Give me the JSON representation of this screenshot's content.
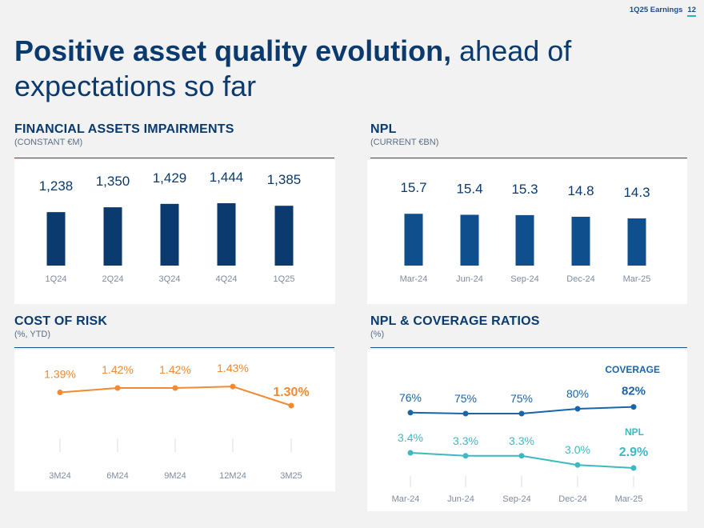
{
  "header": {
    "report_label": "1Q25 Earnings",
    "page_number": "12"
  },
  "title": {
    "bold_part": "Positive asset quality evolution,",
    "regular_part": " ahead of expectations so far"
  },
  "colors": {
    "navy": "#0a3a6e",
    "blue_bar": "#0f4f8e",
    "orange": "#f08a33",
    "teal": "#3fb8c4",
    "coverage_blue": "#1a64a8",
    "axis_label": "#7d8ba0"
  },
  "sections": {
    "impairments": {
      "title": "FINANCIAL ASSETS IMPAIRMENTS",
      "subtitle": "(CONSTANT €M)"
    },
    "npl": {
      "title": "NPL",
      "subtitle": "(CURRENT €BN)"
    },
    "cost_of_risk": {
      "title": "COST OF RISK",
      "subtitle": "(%, YTD)"
    },
    "ratios": {
      "title": "NPL & COVERAGE RATIOS",
      "subtitle": "(%)"
    }
  },
  "chart_data": [
    {
      "id": "impairments",
      "type": "bar",
      "title": "FINANCIAL ASSETS IMPAIRMENTS",
      "ylabel": "(CONSTANT €M)",
      "categories": [
        "1Q24",
        "2Q24",
        "3Q24",
        "4Q24",
        "1Q25"
      ],
      "values": [
        1238,
        1350,
        1429,
        1444,
        1385
      ],
      "labels": [
        "1,238",
        "1,350",
        "1,429",
        "1,444",
        "1,385"
      ],
      "ylim": [
        0,
        1500
      ]
    },
    {
      "id": "npl",
      "type": "bar",
      "title": "NPL",
      "ylabel": "(CURRENT €BN)",
      "categories": [
        "Mar-24",
        "Jun-24",
        "Sep-24",
        "Dec-24",
        "Mar-25"
      ],
      "values": [
        15.7,
        15.4,
        15.3,
        14.8,
        14.3
      ],
      "labels": [
        "15.7",
        "15.4",
        "15.3",
        "14.8",
        "14.3"
      ],
      "ylim": [
        0,
        16
      ]
    },
    {
      "id": "cost_of_risk",
      "type": "line",
      "title": "COST OF RISK",
      "ylabel": "(%, YTD)",
      "categories": [
        "3M24",
        "6M24",
        "9M24",
        "12M24",
        "3M25"
      ],
      "values": [
        1.39,
        1.42,
        1.42,
        1.43,
        1.3
      ],
      "labels": [
        "1.39%",
        "1.42%",
        "1.42%",
        "1.43%",
        "1.30%"
      ],
      "ylim": [
        1.0,
        1.6
      ]
    },
    {
      "id": "ratios",
      "type": "line",
      "title": "NPL & COVERAGE RATIOS",
      "ylabel": "(%)",
      "categories": [
        "Mar-24",
        "Jun-24",
        "Sep-24",
        "Dec-24",
        "Mar-25"
      ],
      "series": [
        {
          "name": "COVERAGE",
          "values": [
            76,
            75,
            75,
            80,
            82
          ],
          "labels": [
            "76%",
            "75%",
            "75%",
            "80%",
            "82%"
          ]
        },
        {
          "name": "NPL",
          "values": [
            3.4,
            3.3,
            3.3,
            3.0,
            2.9
          ],
          "labels": [
            "3.4%",
            "3.3%",
            "3.3%",
            "3.0%",
            "2.9%"
          ]
        }
      ]
    }
  ]
}
